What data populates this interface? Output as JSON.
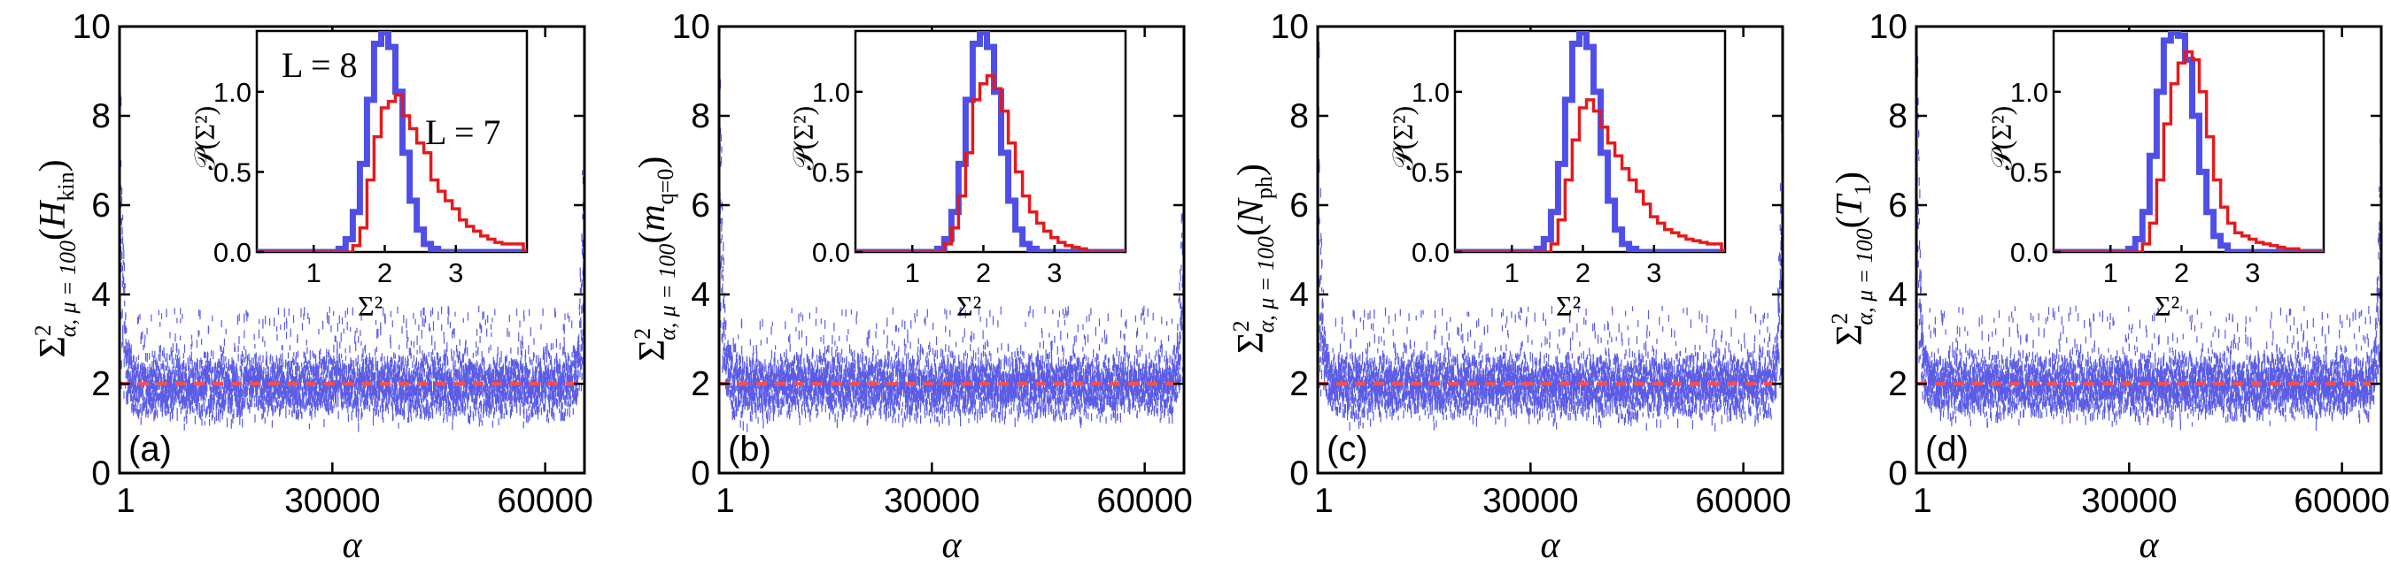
{
  "colors": {
    "scatter": "#5a5ce6",
    "reference_line": "#ff4d4d",
    "hist_L8": "#4f4fe8",
    "hist_L7": "#e41a1c"
  },
  "chart_data": [
    {
      "type": "scatter",
      "panel_label": "(a)",
      "ylabel_observable": "H",
      "ylabel_sub": "kin",
      "xlabel": "α",
      "x_ticks": [
        "1",
        "30000",
        "60000"
      ],
      "y_ticks": [
        "0",
        "2",
        "4",
        "6",
        "8",
        "10"
      ],
      "xlim": [
        1,
        65536
      ],
      "ylim": [
        0,
        10
      ],
      "reference_value": 2,
      "typical_range": [
        1.6,
        2.8
      ],
      "inset": {
        "type": "histogram",
        "xlabel": "Σ²",
        "ylabel": "𝒫(Σ²)",
        "x_ticks": [
          "1",
          "2",
          "3"
        ],
        "y_ticks": [
          "0.0",
          "0.5",
          "1.0"
        ],
        "xlim": [
          0.2,
          4.0
        ],
        "ylim": [
          0,
          1.38
        ],
        "annotations": [
          "L = 8",
          "L = 7"
        ],
        "series": [
          {
            "name": "L = 8",
            "x": [
              1.3,
              1.4,
              1.5,
              1.6,
              1.7,
              1.8,
              1.9,
              2.0,
              2.1,
              2.2,
              2.3,
              2.4,
              2.5,
              2.6,
              2.7,
              2.8
            ],
            "values": [
              0.0,
              0.02,
              0.08,
              0.25,
              0.55,
              0.95,
              1.3,
              1.37,
              1.28,
              1.0,
              0.62,
              0.32,
              0.14,
              0.05,
              0.02,
              0.0
            ]
          },
          {
            "name": "L = 7",
            "x": [
              1.5,
              1.6,
              1.7,
              1.8,
              1.9,
              2.0,
              2.1,
              2.2,
              2.3,
              2.4,
              2.5,
              2.6,
              2.7,
              2.8,
              2.9,
              3.0,
              3.1,
              3.2,
              3.3,
              3.4,
              3.5,
              3.6,
              3.7,
              3.8,
              3.9
            ],
            "values": [
              0.0,
              0.04,
              0.15,
              0.45,
              0.72,
              0.9,
              0.94,
              0.98,
              0.85,
              0.77,
              0.68,
              0.62,
              0.45,
              0.38,
              0.32,
              0.27,
              0.2,
              0.16,
              0.13,
              0.1,
              0.08,
              0.06,
              0.05,
              0.05,
              0.05
            ]
          }
        ]
      }
    },
    {
      "type": "scatter",
      "panel_label": "(b)",
      "ylabel_observable": "m",
      "ylabel_sub": "q=0",
      "xlabel": "α",
      "x_ticks": [
        "1",
        "30000",
        "60000"
      ],
      "y_ticks": [
        "0",
        "2",
        "4",
        "6",
        "8",
        "10"
      ],
      "xlim": [
        1,
        65536
      ],
      "ylim": [
        0,
        10
      ],
      "reference_value": 2,
      "typical_range": [
        1.6,
        2.8
      ],
      "inset": {
        "type": "histogram",
        "xlabel": "Σ²",
        "ylabel": "𝒫(Σ²)",
        "x_ticks": [
          "1",
          "2",
          "3"
        ],
        "y_ticks": [
          "0.0",
          "0.5",
          "1.0"
        ],
        "xlim": [
          0.2,
          4.0
        ],
        "ylim": [
          0,
          1.38
        ],
        "annotations": [],
        "series": [
          {
            "name": "L = 8",
            "x": [
              1.3,
              1.4,
              1.5,
              1.6,
              1.7,
              1.8,
              1.9,
              2.0,
              2.1,
              2.2,
              2.3,
              2.4,
              2.5,
              2.6,
              2.7,
              2.8
            ],
            "values": [
              0.0,
              0.02,
              0.08,
              0.25,
              0.55,
              0.95,
              1.3,
              1.37,
              1.28,
              1.0,
              0.62,
              0.32,
              0.14,
              0.05,
              0.02,
              0.0
            ]
          },
          {
            "name": "L = 7",
            "x": [
              1.4,
              1.5,
              1.6,
              1.7,
              1.8,
              1.9,
              2.0,
              2.1,
              2.2,
              2.3,
              2.4,
              2.5,
              2.6,
              2.7,
              2.8,
              2.9,
              3.0,
              3.1,
              3.2,
              3.3,
              3.4,
              3.5
            ],
            "values": [
              0.0,
              0.05,
              0.15,
              0.35,
              0.62,
              0.95,
              1.05,
              1.1,
              1.02,
              0.88,
              0.68,
              0.5,
              0.35,
              0.25,
              0.18,
              0.13,
              0.09,
              0.06,
              0.04,
              0.03,
              0.02,
              0.0
            ]
          }
        ]
      }
    },
    {
      "type": "scatter",
      "panel_label": "(c)",
      "ylabel_observable": "N",
      "ylabel_sub": "ph",
      "xlabel": "α",
      "x_ticks": [
        "1",
        "30000",
        "60000"
      ],
      "y_ticks": [
        "0",
        "2",
        "4",
        "6",
        "8",
        "10"
      ],
      "xlim": [
        1,
        65536
      ],
      "ylim": [
        0,
        10
      ],
      "reference_value": 2,
      "typical_range": [
        1.6,
        2.8
      ],
      "inset": {
        "type": "histogram",
        "xlabel": "Σ²",
        "ylabel": "𝒫(Σ²)",
        "x_ticks": [
          "1",
          "2",
          "3"
        ],
        "y_ticks": [
          "0.0",
          "0.5",
          "1.0"
        ],
        "xlim": [
          0.2,
          4.0
        ],
        "ylim": [
          0,
          1.38
        ],
        "annotations": [],
        "series": [
          {
            "name": "L = 8",
            "x": [
              1.3,
              1.4,
              1.5,
              1.6,
              1.7,
              1.8,
              1.9,
              2.0,
              2.1,
              2.2,
              2.3,
              2.4,
              2.5,
              2.6,
              2.7,
              2.8
            ],
            "values": [
              0.0,
              0.02,
              0.08,
              0.25,
              0.55,
              0.95,
              1.3,
              1.37,
              1.28,
              1.0,
              0.62,
              0.32,
              0.14,
              0.05,
              0.02,
              0.0
            ]
          },
          {
            "name": "L = 7",
            "x": [
              1.5,
              1.6,
              1.7,
              1.8,
              1.9,
              2.0,
              2.1,
              2.2,
              2.3,
              2.4,
              2.5,
              2.6,
              2.7,
              2.8,
              2.9,
              3.0,
              3.1,
              3.2,
              3.3,
              3.4,
              3.5,
              3.6,
              3.7,
              3.8,
              3.9
            ],
            "values": [
              0.0,
              0.05,
              0.2,
              0.45,
              0.7,
              0.9,
              0.95,
              0.88,
              0.78,
              0.68,
              0.6,
              0.52,
              0.45,
              0.38,
              0.3,
              0.22,
              0.18,
              0.14,
              0.12,
              0.1,
              0.08,
              0.07,
              0.06,
              0.05,
              0.05
            ]
          }
        ]
      }
    },
    {
      "type": "scatter",
      "panel_label": "(d)",
      "ylabel_observable": "T",
      "ylabel_sub": "1",
      "xlabel": "α",
      "x_ticks": [
        "1",
        "30000",
        "60000"
      ],
      "y_ticks": [
        "0",
        "2",
        "4",
        "6",
        "8",
        "10"
      ],
      "xlim": [
        1,
        65536
      ],
      "ylim": [
        0,
        10
      ],
      "reference_value": 2,
      "typical_range": [
        1.6,
        2.8
      ],
      "inset": {
        "type": "histogram",
        "xlabel": "Σ²",
        "ylabel": "𝒫(Σ²)",
        "x_ticks": [
          "1",
          "2",
          "3"
        ],
        "y_ticks": [
          "0.0",
          "0.5",
          "1.0"
        ],
        "xlim": [
          0.2,
          4.0
        ],
        "ylim": [
          0,
          1.38
        ],
        "annotations": [],
        "series": [
          {
            "name": "L = 8",
            "x": [
              1.2,
              1.3,
              1.4,
              1.5,
              1.6,
              1.7,
              1.8,
              1.9,
              2.0,
              2.1,
              2.2,
              2.3,
              2.4,
              2.5,
              2.6,
              2.7
            ],
            "values": [
              0.0,
              0.02,
              0.08,
              0.25,
              0.6,
              1.0,
              1.32,
              1.37,
              1.35,
              1.2,
              0.85,
              0.5,
              0.25,
              0.1,
              0.04,
              0.0
            ]
          },
          {
            "name": "L = 7",
            "x": [
              1.4,
              1.5,
              1.6,
              1.7,
              1.8,
              1.9,
              2.0,
              2.1,
              2.2,
              2.3,
              2.4,
              2.5,
              2.6,
              2.7,
              2.8,
              2.9,
              3.0,
              3.1,
              3.2,
              3.3,
              3.4,
              3.5,
              3.6,
              3.7
            ],
            "values": [
              0.0,
              0.05,
              0.18,
              0.45,
              0.8,
              1.05,
              1.18,
              1.25,
              1.2,
              1.0,
              0.72,
              0.45,
              0.28,
              0.18,
              0.12,
              0.1,
              0.08,
              0.06,
              0.05,
              0.04,
              0.03,
              0.02,
              0.02,
              0.0
            ]
          }
        ]
      }
    }
  ]
}
